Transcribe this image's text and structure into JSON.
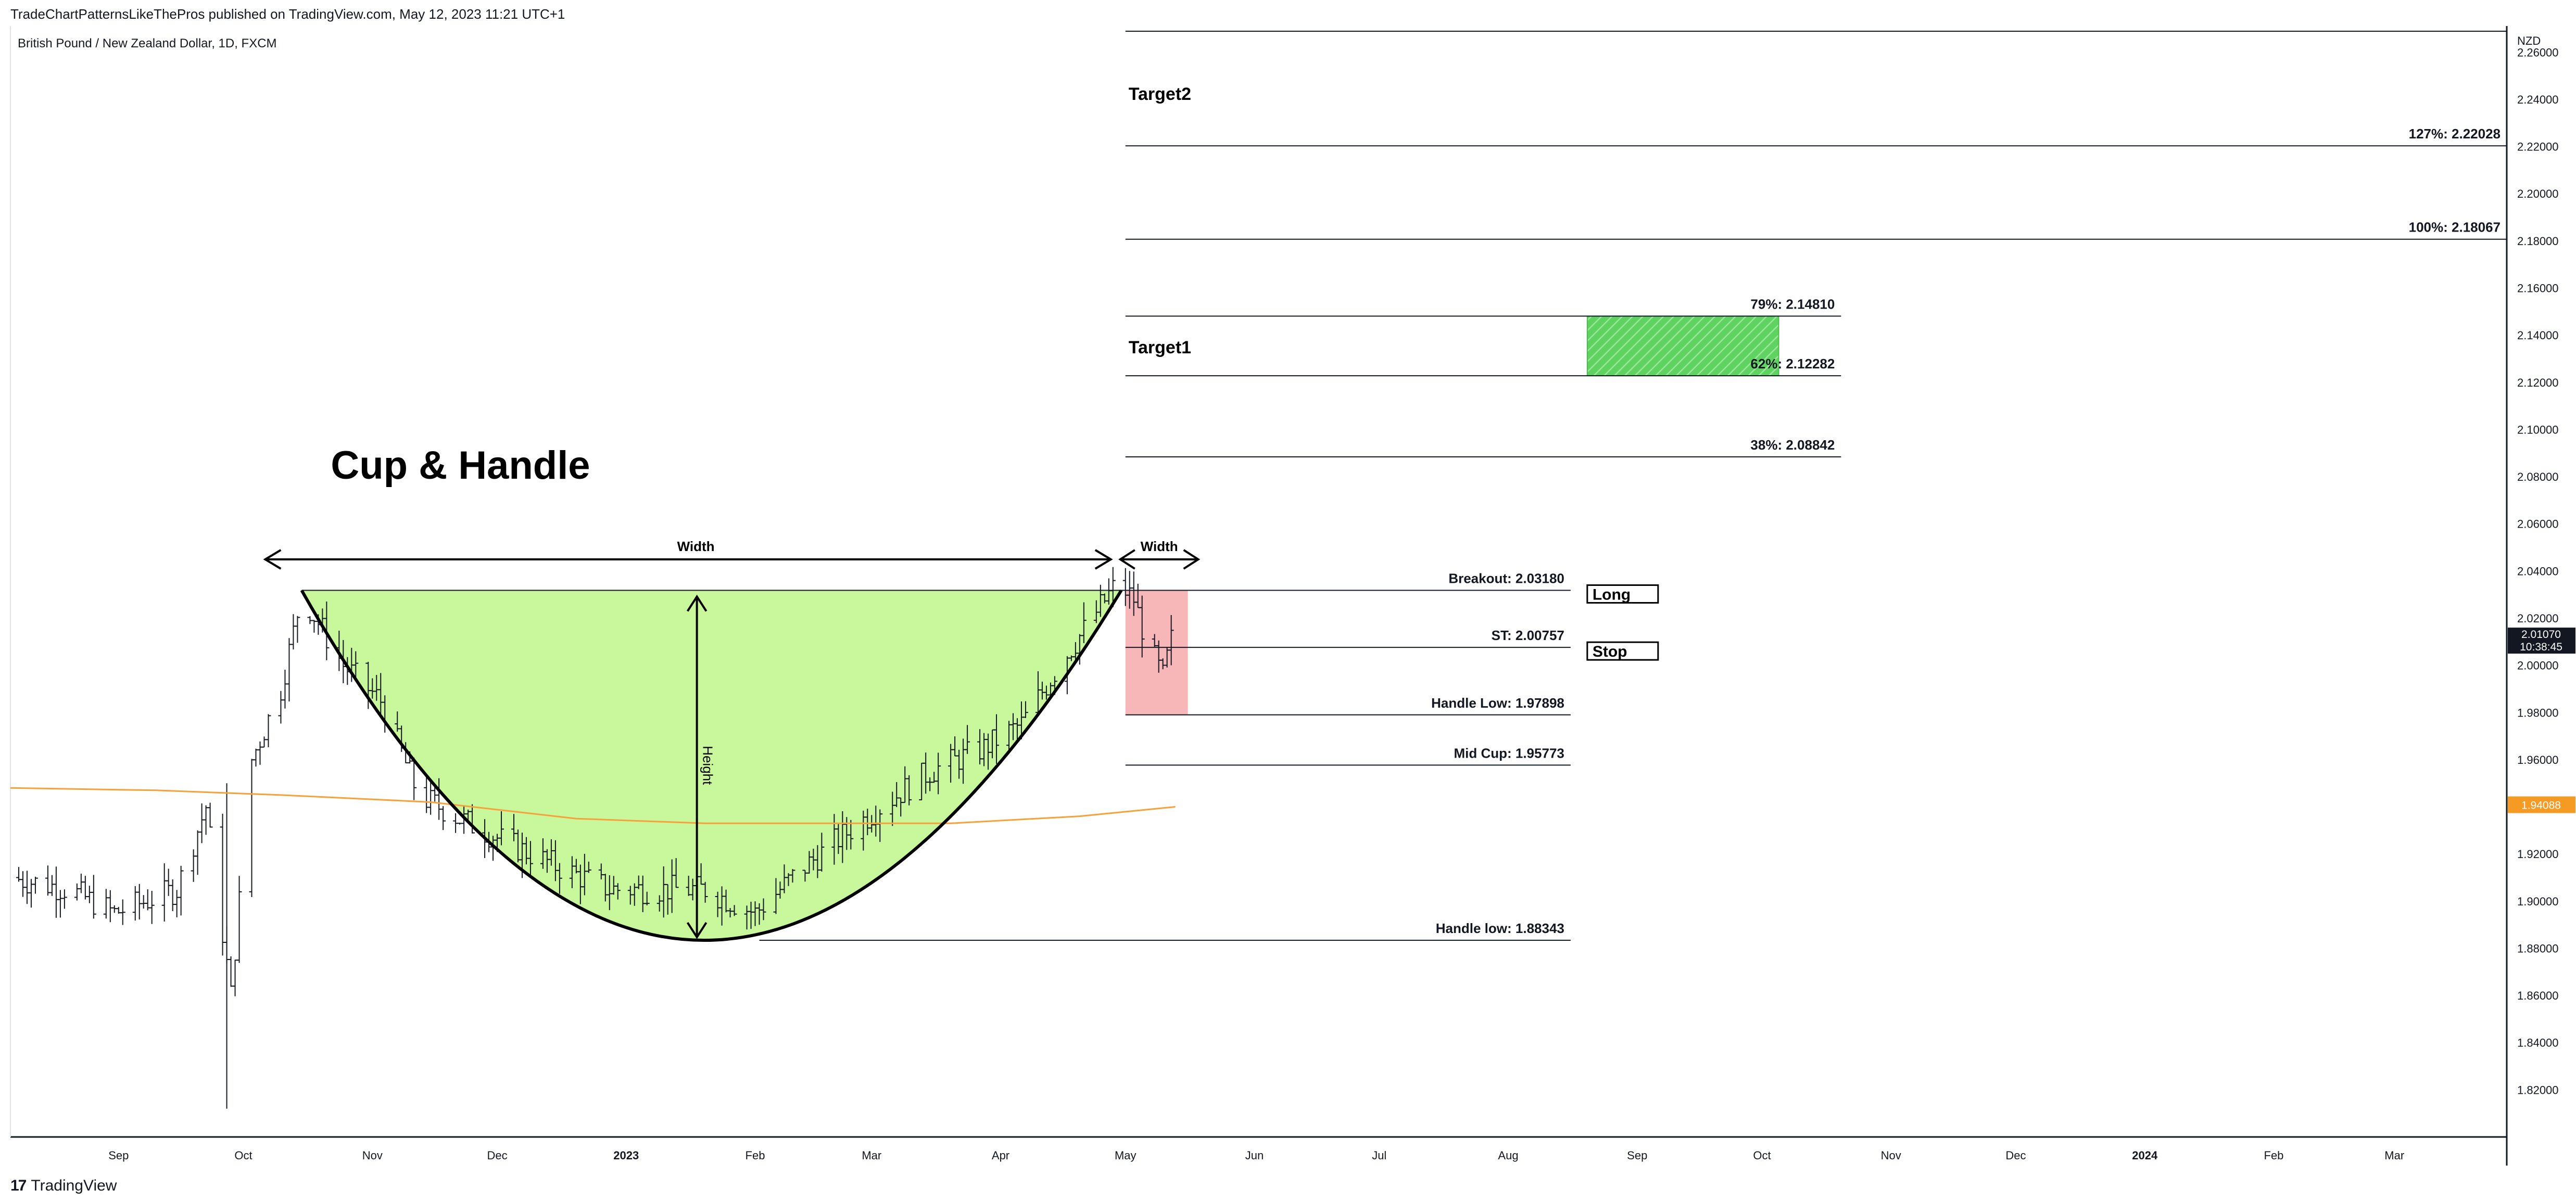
{
  "header": {
    "publisher_line": "TradeChartPatternsLikeThePros published on TradingView.com, May 12, 2023 11:21 UTC+1",
    "symbol_line": "British Pound / New Zealand Dollar, 1D, FXCM"
  },
  "footer": {
    "brand_logo": "17",
    "brand_name": "TradingView"
  },
  "colors": {
    "cup_fill": "#c9f79b",
    "handle_fill": "#f7b7b9",
    "target_box": "#5fd35f",
    "moving_average": "#f7a13a",
    "price_tag_bg": "#131722",
    "ma_tag_bg": "#f59a23",
    "candles": "#131722"
  },
  "chart_data": {
    "type": "candlestick",
    "title": "Cup & Handle",
    "symbol": "British Pound / New Zealand Dollar",
    "interval": "1D",
    "exchange": "FXCM",
    "currency_label": "NZD",
    "ylim": [
      1.8,
      2.27
    ],
    "y_ticks": [
      "2.26000",
      "2.24000",
      "2.22000",
      "2.20000",
      "2.18000",
      "2.16000",
      "2.14000",
      "2.12000",
      "2.10000",
      "2.08000",
      "2.06000",
      "2.04000",
      "2.02000",
      "2.00000",
      "1.98000",
      "1.96000",
      "1.94000",
      "1.92000",
      "1.90000",
      "1.88000",
      "1.86000",
      "1.84000",
      "1.82000"
    ],
    "x_labels": [
      {
        "label": "Sep",
        "date": "2022-09-01"
      },
      {
        "label": "Oct",
        "date": "2022-10-01"
      },
      {
        "label": "Nov",
        "date": "2022-11-01"
      },
      {
        "label": "Dec",
        "date": "2022-12-01"
      },
      {
        "label": "2023",
        "date": "2023-01-01",
        "bold": true
      },
      {
        "label": "Feb",
        "date": "2023-02-01"
      },
      {
        "label": "Mar",
        "date": "2023-03-01"
      },
      {
        "label": "Apr",
        "date": "2023-04-01"
      },
      {
        "label": "May",
        "date": "2023-05-01"
      },
      {
        "label": "Jun",
        "date": "2023-06-01"
      },
      {
        "label": "Jul",
        "date": "2023-07-01"
      },
      {
        "label": "Aug",
        "date": "2023-08-01"
      },
      {
        "label": "Sep",
        "date": "2023-09-01"
      },
      {
        "label": "Oct",
        "date": "2023-10-01"
      },
      {
        "label": "Nov",
        "date": "2023-11-01"
      },
      {
        "label": "Dec",
        "date": "2023-12-01"
      },
      {
        "label": "2024",
        "date": "2024-01-01",
        "bold": true
      },
      {
        "label": "Feb",
        "date": "2024-02-01"
      },
      {
        "label": "Mar",
        "date": "2024-03-01"
      }
    ],
    "x_start": "2022-08-06",
    "x_end": "2024-03-28",
    "current_price": {
      "value": 2.0107,
      "label": "2.01070",
      "countdown": "10:38:45"
    },
    "moving_average_value": {
      "value": 1.94088,
      "label": "1.94088"
    },
    "price_series": [
      [
        "2022-08-06",
        1.91
      ],
      [
        "2022-08-20",
        1.905
      ],
      [
        "2022-08-31",
        1.895
      ],
      [
        "2022-09-15",
        1.905
      ],
      [
        "2022-09-22",
        1.94
      ],
      [
        "2022-09-28",
        1.86
      ],
      [
        "2022-10-03",
        1.96
      ],
      [
        "2022-10-10",
        1.99
      ],
      [
        "2022-10-15",
        2.03
      ],
      [
        "2022-10-25",
        2.0
      ],
      [
        "2022-11-03",
        1.985
      ],
      [
        "2022-11-12",
        1.945
      ],
      [
        "2022-11-22",
        1.935
      ],
      [
        "2022-12-03",
        1.925
      ],
      [
        "2022-12-15",
        1.915
      ],
      [
        "2022-12-28",
        1.905
      ],
      [
        "2023-01-10",
        1.905
      ],
      [
        "2023-01-20",
        1.905
      ],
      [
        "2023-02-01",
        1.895
      ],
      [
        "2023-02-10",
        1.91
      ],
      [
        "2023-02-20",
        1.925
      ],
      [
        "2023-03-03",
        1.94
      ],
      [
        "2023-03-15",
        1.955
      ],
      [
        "2023-03-28",
        1.965
      ],
      [
        "2023-04-06",
        1.975
      ],
      [
        "2023-04-15",
        2.0
      ],
      [
        "2023-04-25",
        2.025
      ],
      [
        "2023-04-29",
        2.035
      ],
      [
        "2023-05-03",
        2.028
      ],
      [
        "2023-05-06",
        2.01
      ],
      [
        "2023-05-10",
        1.995
      ],
      [
        "2023-05-12",
        2.0107
      ]
    ],
    "spike_low": {
      "date": "2022-09-27",
      "value": 1.812
    },
    "moving_average": [
      [
        "2022-08-06",
        1.948
      ],
      [
        "2022-09-10",
        1.947
      ],
      [
        "2022-10-10",
        1.945
      ],
      [
        "2022-11-15",
        1.942
      ],
      [
        "2022-12-20",
        1.935
      ],
      [
        "2023-01-20",
        1.933
      ],
      [
        "2023-02-20",
        1.933
      ],
      [
        "2023-03-20",
        1.933
      ],
      [
        "2023-04-20",
        1.936
      ],
      [
        "2023-05-13",
        1.94
      ]
    ],
    "cup": {
      "start": "2022-10-15",
      "bottom": "2023-01-18",
      "end": "2023-04-30",
      "rim": 2.0318,
      "bottom_value": 1.8834
    },
    "handle_box": {
      "start": "2023-05-01",
      "end": "2023-05-16",
      "top": 2.0318,
      "bottom": 1.979
    },
    "target_box": {
      "start": "2023-08-20",
      "end": "2023-10-05",
      "top": 2.1481,
      "bottom": 2.1228
    },
    "annotations": {
      "pattern_title": "Cup & Handle",
      "cup_width": "Width",
      "handle_width": "Width",
      "height": "Height",
      "target2": "Target2",
      "target1": "Target1",
      "long": "Long",
      "stop": "Stop"
    },
    "levels": [
      {
        "label": "127%: 2.22028",
        "value": 2.2203,
        "from": "2023-05-01",
        "to": "2024-03-28"
      },
      {
        "label": "100%: 2.18067",
        "value": 2.1807,
        "from": "2023-05-01",
        "to": "2024-03-28"
      },
      {
        "label": "79%: 2.14810",
        "value": 2.1481,
        "from": "2023-05-01",
        "to": "2023-10-20"
      },
      {
        "label": "62%: 2.12282",
        "value": 2.1228,
        "from": "2023-05-01",
        "to": "2023-10-20"
      },
      {
        "label": "38%: 2.08842",
        "value": 2.0884,
        "from": "2023-05-01",
        "to": "2023-10-20"
      },
      {
        "label": "Breakout: 2.03180",
        "value": 2.0318,
        "from": "2022-10-15",
        "to": "2023-08-16"
      },
      {
        "label": "ST: 2.00757",
        "value": 2.0076,
        "from": "2023-05-01",
        "to": "2023-08-16"
      },
      {
        "label": "Handle Low: 1.97898",
        "value": 1.979,
        "from": "2023-05-01",
        "to": "2023-08-16"
      },
      {
        "label": "Mid Cup: 1.95773",
        "value": 1.9577,
        "from": "2023-05-01",
        "to": "2023-08-16"
      },
      {
        "label": "Handle low: 1.88343",
        "value": 1.8834,
        "from": "2023-02-02",
        "to": "2023-08-16"
      }
    ]
  }
}
